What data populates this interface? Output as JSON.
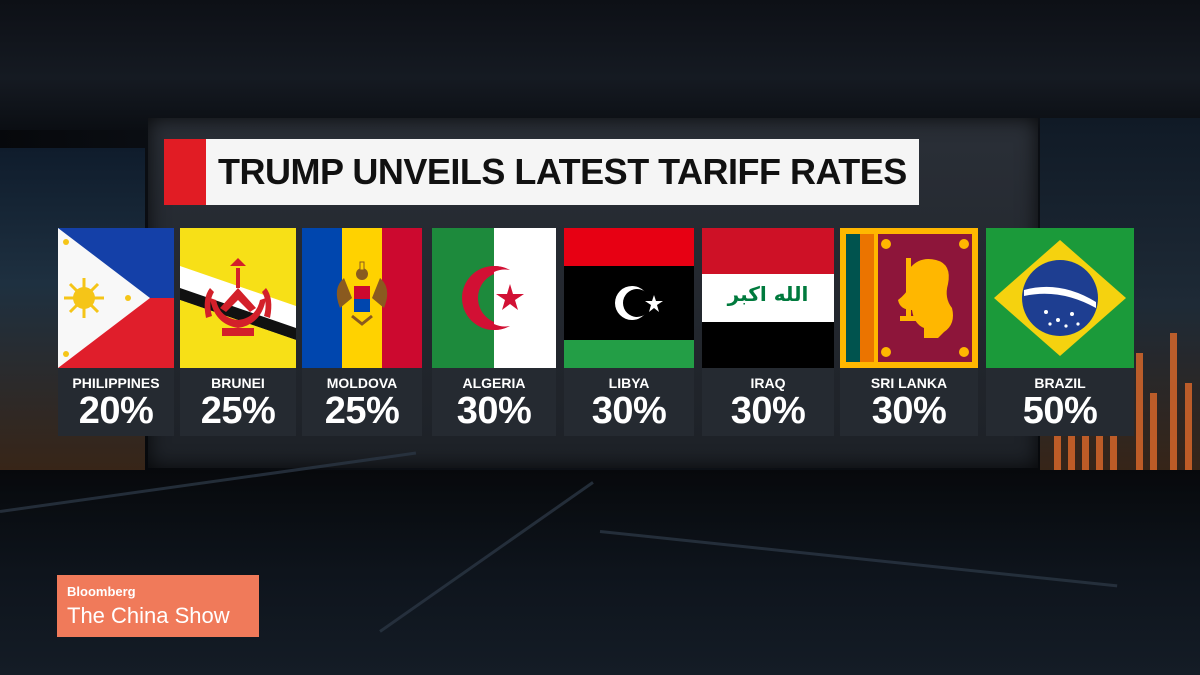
{
  "title": "TRUMP UNVEILS LATEST TARIFF RATES",
  "countries": [
    {
      "name": "PHILIPPINES",
      "rate": "20%"
    },
    {
      "name": "BRUNEI",
      "rate": "25%"
    },
    {
      "name": "MOLDOVA",
      "rate": "25%"
    },
    {
      "name": "ALGERIA",
      "rate": "30%"
    },
    {
      "name": "LIBYA",
      "rate": "30%"
    },
    {
      "name": "IRAQ",
      "rate": "30%"
    },
    {
      "name": "SRI LANKA",
      "rate": "30%"
    },
    {
      "name": "BRAZIL",
      "rate": "50%"
    }
  ],
  "logo": {
    "brand": "Bloomberg",
    "show": "The China Show"
  },
  "iraq_flag_text": "الله اكبر",
  "colors": {
    "accent_red": "#e11c24",
    "logo_bg": "#f07a5a"
  }
}
